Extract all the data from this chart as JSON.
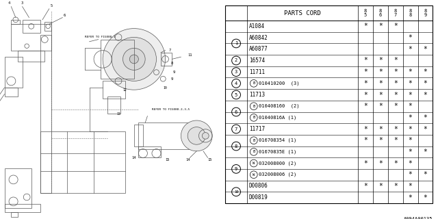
{
  "bg_color": "#ffffff",
  "diagram_ref": "A094A00135",
  "table": {
    "rows": [
      {
        "item": "",
        "part": "A1084",
        "prefix": "",
        "cols": [
          true,
          true,
          true,
          false,
          false
        ]
      },
      {
        "item": "1",
        "part": "A60842",
        "prefix": "",
        "cols": [
          false,
          false,
          false,
          true,
          false
        ]
      },
      {
        "item": "",
        "part": "A60877",
        "prefix": "",
        "cols": [
          false,
          false,
          false,
          true,
          true
        ]
      },
      {
        "item": "2",
        "part": "16574",
        "prefix": "",
        "cols": [
          true,
          true,
          true,
          false,
          false
        ]
      },
      {
        "item": "3",
        "part": "11711",
        "prefix": "",
        "cols": [
          true,
          true,
          true,
          true,
          true
        ]
      },
      {
        "item": "4",
        "part": "010410200  (3)",
        "prefix": "B",
        "cols": [
          true,
          true,
          true,
          true,
          true
        ]
      },
      {
        "item": "5",
        "part": "11713",
        "prefix": "",
        "cols": [
          true,
          true,
          true,
          true,
          true
        ]
      },
      {
        "item": "6",
        "part": "010408160  (2)",
        "prefix": "B",
        "cols": [
          true,
          true,
          true,
          true,
          false
        ]
      },
      {
        "item": "",
        "part": "01040816A (1)",
        "prefix": "B",
        "cols": [
          false,
          false,
          false,
          true,
          true
        ]
      },
      {
        "item": "7",
        "part": "11717",
        "prefix": "",
        "cols": [
          true,
          true,
          true,
          true,
          true
        ]
      },
      {
        "item": "8",
        "part": "016708354 (1)",
        "prefix": "B",
        "cols": [
          true,
          true,
          true,
          true,
          false
        ]
      },
      {
        "item": "",
        "part": "01670835E (1)",
        "prefix": "B",
        "cols": [
          false,
          false,
          false,
          true,
          true
        ]
      },
      {
        "item": "9",
        "part": "032008000 (2)",
        "prefix": "W",
        "cols": [
          true,
          true,
          true,
          true,
          false
        ]
      },
      {
        "item": "",
        "part": "032008006 (2)",
        "prefix": "W",
        "cols": [
          false,
          false,
          false,
          true,
          true
        ]
      },
      {
        "item": "10",
        "part": "D00806",
        "prefix": "",
        "cols": [
          true,
          true,
          true,
          true,
          false
        ]
      },
      {
        "item": "",
        "part": "D00819",
        "prefix": "",
        "cols": [
          false,
          false,
          false,
          true,
          true
        ]
      }
    ]
  }
}
